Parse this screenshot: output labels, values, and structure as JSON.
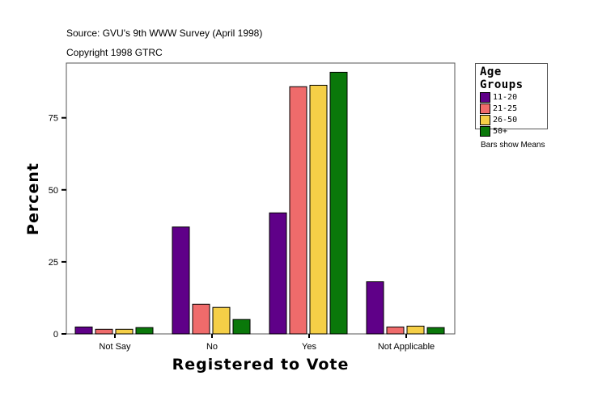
{
  "source_text": "Source: GVU's 9th WWW Survey (April 1998)",
  "copyright_text": "Copyright 1998 GTRC",
  "note": "Bars show Means",
  "chart_data": {
    "type": "bar",
    "xlabel": "Registered to Vote",
    "ylabel": "Percent",
    "categories": [
      "Not Say",
      "No",
      "Yes",
      "Not Applicable"
    ],
    "ylim": [
      0,
      94
    ],
    "yticks": [
      0,
      25,
      50,
      75
    ],
    "grid": false,
    "legend_title": "Age Groups",
    "legend_placement": "right",
    "series": [
      {
        "name": "11-20",
        "color": "#5f0088",
        "values": [
          2.4,
          37.1,
          42.0,
          18.1
        ]
      },
      {
        "name": "21-25",
        "color": "#ef6b6b",
        "values": [
          1.6,
          10.3,
          85.8,
          2.4
        ]
      },
      {
        "name": "26-50",
        "color": "#f5cf47",
        "values": [
          1.6,
          9.2,
          86.3,
          2.7
        ]
      },
      {
        "name": "50+",
        "color": "#0a780a",
        "values": [
          2.2,
          5.0,
          90.8,
          2.2
        ]
      }
    ]
  }
}
